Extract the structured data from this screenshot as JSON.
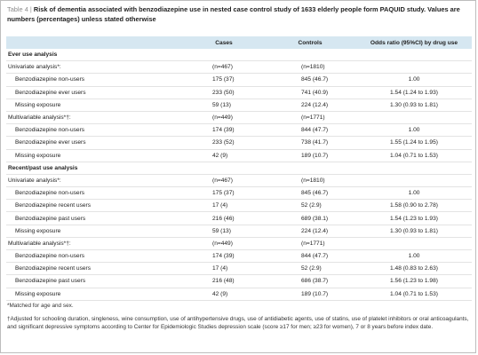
{
  "caption": {
    "label": "Table 4",
    "title_text": "Risk of dementia associated with benzodiazepine use in nested case control study of 1633 elderly people form PAQUID study. Values are numbers (percentages) unless stated otherwise"
  },
  "columns": [
    "",
    "Cases",
    "Controls",
    "Odds ratio (95%CI) by drug use"
  ],
  "sections": [
    {
      "title": "Ever use analysis",
      "groups": [
        {
          "label": "Univariate analysis*:",
          "cases": "(n=467)",
          "controls": "(n=1810)",
          "rows": [
            {
              "label": "Benzodiazepine non-users",
              "cases": "175 (37)",
              "controls": "845 (46.7)",
              "or": "1.00"
            },
            {
              "label": "Benzodiazepine ever users",
              "cases": "233 (50)",
              "controls": "741 (40.9)",
              "or": "1.54 (1.24 to 1.93)"
            },
            {
              "label": "Missing exposure",
              "cases": "59 (13)",
              "controls": "224 (12.4)",
              "or": "1.30 (0.93 to 1.81)"
            }
          ]
        },
        {
          "label": "Multivariable analysis*†:",
          "cases": "(n=449)",
          "controls": "(n=1771)",
          "rows": [
            {
              "label": "Benzodiazepine non-users",
              "cases": "174 (39)",
              "controls": "844 (47.7)",
              "or": "1.00"
            },
            {
              "label": "Benzodiazepine ever users",
              "cases": "233 (52)",
              "controls": "738 (41.7)",
              "or": "1.55 (1.24 to 1.95)"
            },
            {
              "label": "Missing exposure",
              "cases": "42 (9)",
              "controls": "189 (10.7)",
              "or": "1.04 (0.71 to 1.53)"
            }
          ]
        }
      ]
    },
    {
      "title": "Recent/past use analysis",
      "groups": [
        {
          "label": "Univariate analysis*:",
          "cases": "(n=467)",
          "controls": "(n=1810)",
          "rows": [
            {
              "label": "Benzodiazepine non-users",
              "cases": "175 (37)",
              "controls": "845 (46.7)",
              "or": "1.00"
            },
            {
              "label": "Benzodiazepine recent users",
              "cases": "17 (4)",
              "controls": "52 (2.9)",
              "or": "1.58 (0.90 to 2.78)"
            },
            {
              "label": "Benzodiazepine past users",
              "cases": "216 (46)",
              "controls": "689 (38.1)",
              "or": "1.54 (1.23 to 1.93)"
            },
            {
              "label": "Missing exposure",
              "cases": "59 (13)",
              "controls": "224 (12.4)",
              "or": "1.30 (0.93 to 1.81)"
            }
          ]
        },
        {
          "label": "Multivariable analysis*†:",
          "cases": "(n=449)",
          "controls": "(n=1771)",
          "rows": [
            {
              "label": "Benzodiazepine non-users",
              "cases": "174 (39)",
              "controls": "844 (47.7)",
              "or": "1.00"
            },
            {
              "label": "Benzodiazepine recent users",
              "cases": "17 (4)",
              "controls": "52 (2.9)",
              "or": "1.48 (0.83 to 2.63)"
            },
            {
              "label": "Benzodiazepine past users",
              "cases": "216 (48)",
              "controls": "686 (38.7)",
              "or": "1.56 (1.23 to 1.98)"
            },
            {
              "label": "Missing exposure",
              "cases": "42 (9)",
              "controls": "189 (10.7)",
              "or": "1.04 (0.71 to 1.53)"
            }
          ]
        }
      ]
    }
  ],
  "footnotes": [
    "*Matched for age and sex.",
    "†Adjusted for schooling duration, singleness, wine consumption, use of antihypertensive drugs, use of antidiabetic agents, use of statins, use of platelet inhibitors or oral anticoagulants, and significant depressive symptoms according to Center for Epidemiologic Studies depression scale (score ≥17 for men; ≥23 for women), 7 or 8 years before index date."
  ]
}
